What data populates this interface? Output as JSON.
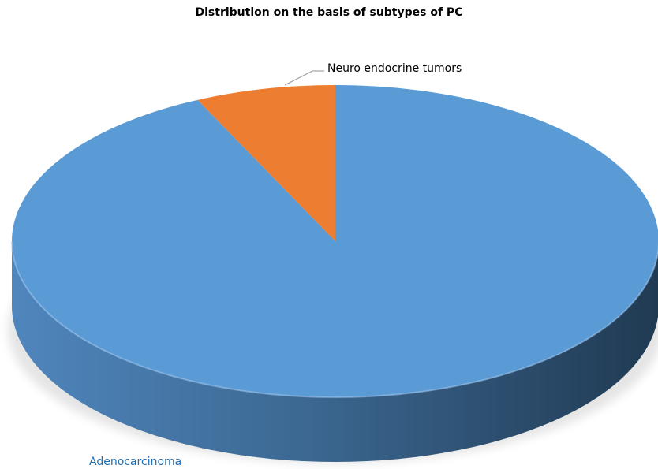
{
  "chart_data": {
    "type": "pie",
    "title": "Distribution on the basis of subtypes of PC",
    "slices": [
      {
        "label": "Adenocarcinoma",
        "value": 93,
        "color": "#5B9BD5"
      },
      {
        "label": "Neuro endocrine tumors",
        "value": 7,
        "color": "#ED7D31"
      }
    ],
    "legend": "none",
    "style": "3d"
  }
}
